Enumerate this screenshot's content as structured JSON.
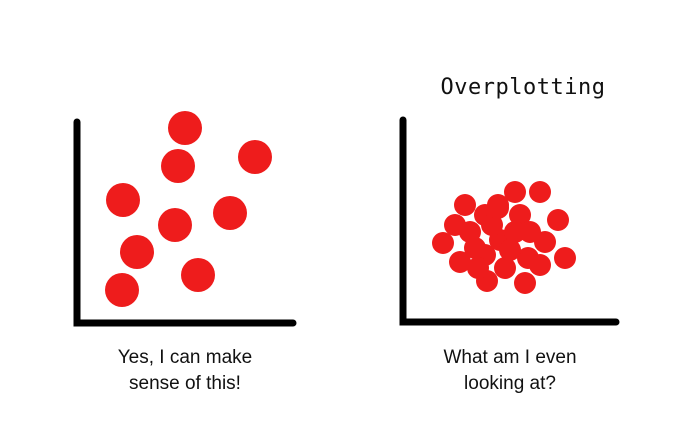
{
  "panels": [
    {
      "caption_lines": [
        "Yes, I can make",
        "sense of this!"
      ]
    },
    {
      "title": "Overplotting",
      "caption_lines": [
        "What am I even",
        "looking at?"
      ]
    }
  ]
}
